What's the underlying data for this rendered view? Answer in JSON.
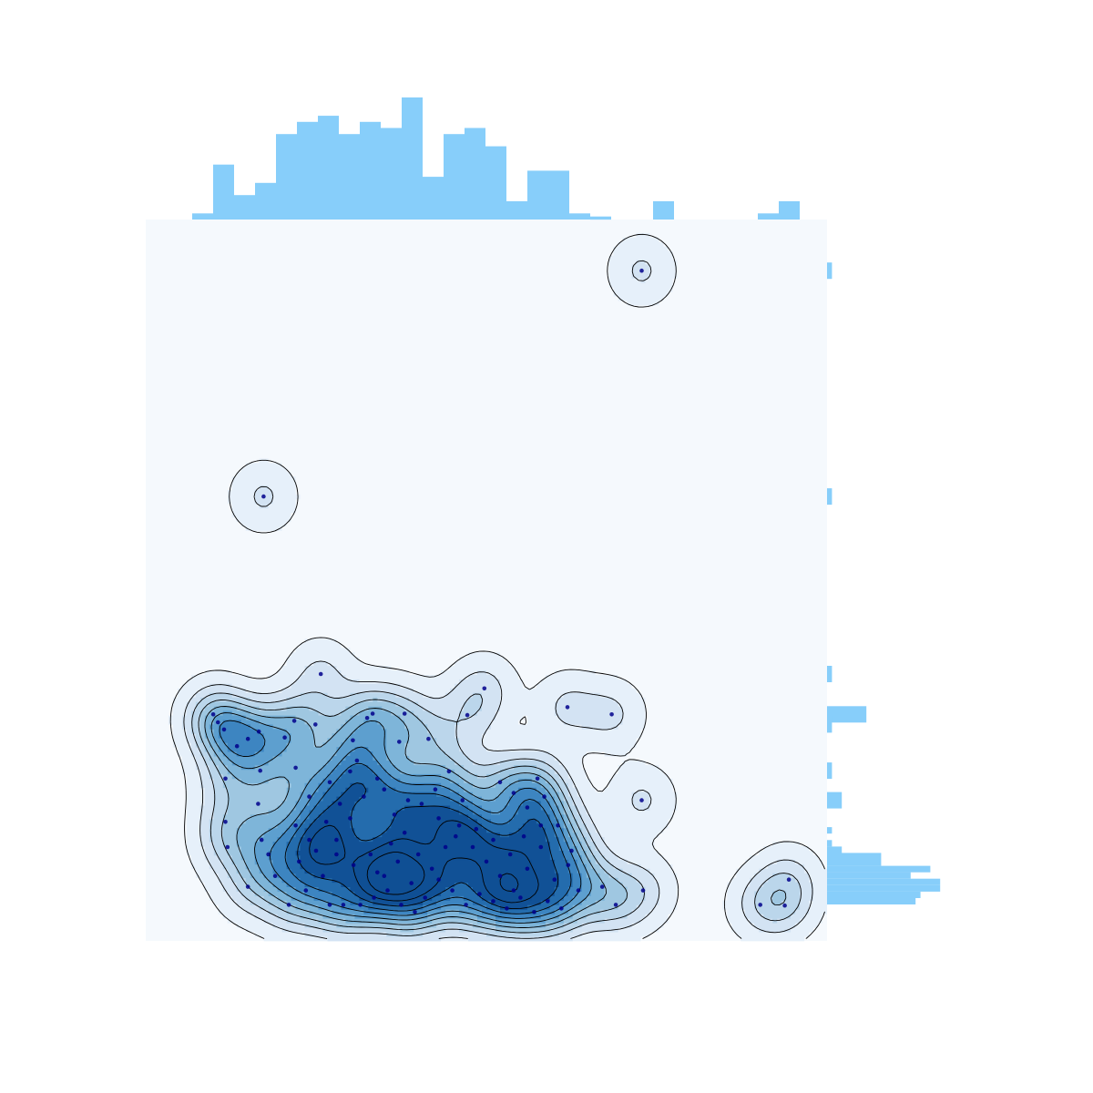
{
  "chart_data": {
    "type": "scatter",
    "title": "",
    "xlabel": "",
    "ylabel": "",
    "xlim": [
      0,
      100
    ],
    "ylim": [
      0,
      100
    ],
    "grid": false,
    "legend": "none",
    "colors": {
      "background": "#f5f9fd",
      "histogram": "#87cefa",
      "points": "#00008b",
      "contour_line": "#000000",
      "density_levels": [
        "#e4eef9",
        "#d0e1f2",
        "#b8d4ea",
        "#9cc5e0",
        "#7ab3d8",
        "#5a9ccd",
        "#3a82bf",
        "#2169ab",
        "#0f4f94"
      ]
    },
    "points": [
      [
        72.8,
        92.9
      ],
      [
        17.3,
        61.6
      ],
      [
        9.9,
        31.4
      ],
      [
        10.6,
        30.3
      ],
      [
        16.8,
        23.6
      ],
      [
        25.7,
        37.0
      ],
      [
        24.9,
        30.0
      ],
      [
        21.8,
        30.5
      ],
      [
        33.3,
        31.5
      ],
      [
        38.0,
        31.5
      ],
      [
        47.2,
        31.3
      ],
      [
        61.9,
        32.4
      ],
      [
        68.4,
        31.4
      ],
      [
        72.8,
        19.5
      ],
      [
        31.0,
        25.0
      ],
      [
        27.0,
        22.0
      ],
      [
        24.0,
        20.0
      ],
      [
        22.0,
        16.0
      ],
      [
        25.0,
        12.5
      ],
      [
        28.0,
        14.0
      ],
      [
        30.0,
        17.0
      ],
      [
        32.0,
        20.0
      ],
      [
        35.0,
        21.0
      ],
      [
        36.5,
        17.5
      ],
      [
        38.0,
        15.0
      ],
      [
        40.0,
        12.0
      ],
      [
        42.0,
        10.0
      ],
      [
        44.0,
        13.0
      ],
      [
        46.0,
        16.0
      ],
      [
        48.0,
        13.0
      ],
      [
        50.0,
        11.0
      ],
      [
        52.0,
        9.0
      ],
      [
        54.0,
        7.0
      ],
      [
        56.0,
        10.0
      ],
      [
        58.0,
        13.0
      ],
      [
        60.0,
        8.5
      ],
      [
        62.0,
        10.5
      ],
      [
        63.5,
        7.0
      ],
      [
        33.0,
        12.0
      ],
      [
        35.0,
        9.0
      ],
      [
        37.0,
        11.0
      ],
      [
        39.0,
        8.0
      ],
      [
        41.0,
        6.0
      ],
      [
        43.0,
        8.5
      ],
      [
        45.0,
        7.0
      ],
      [
        47.0,
        5.0
      ],
      [
        49.0,
        6.5
      ],
      [
        51.0,
        5.5
      ],
      [
        53.0,
        4.5
      ],
      [
        55.0,
        6.0
      ],
      [
        57.0,
        4.0
      ],
      [
        59.0,
        5.5
      ],
      [
        61.0,
        4.5
      ],
      [
        58.0,
        16.0
      ],
      [
        56.0,
        18.5
      ],
      [
        54.0,
        20.5
      ],
      [
        52.0,
        22.0
      ],
      [
        40.5,
        19.0
      ],
      [
        42.5,
        21.0
      ],
      [
        44.5,
        23.5
      ],
      [
        46.5,
        19.5
      ],
      [
        48.5,
        15.5
      ],
      [
        34.0,
        22.5
      ],
      [
        30.0,
        23.5
      ],
      [
        28.5,
        19.0
      ],
      [
        26.5,
        16.5
      ],
      [
        24.0,
        14.0
      ],
      [
        22.5,
        11.0
      ],
      [
        11.7,
        16.5
      ],
      [
        11.7,
        22.5
      ],
      [
        15.0,
        28.0
      ],
      [
        17.0,
        14.0
      ],
      [
        19.0,
        9.0
      ],
      [
        21.0,
        5.0
      ],
      [
        15.0,
        7.5
      ],
      [
        12.0,
        13.0
      ],
      [
        16.5,
        19.0
      ],
      [
        35.5,
        7.0
      ],
      [
        37.5,
        5.0
      ],
      [
        39.5,
        4.0
      ],
      [
        27.0,
        5.0
      ],
      [
        29.0,
        5.0
      ],
      [
        31.5,
        5.0
      ],
      [
        33.5,
        6.0
      ],
      [
        62.5,
        12.5
      ],
      [
        67.0,
        7.5
      ],
      [
        69.0,
        5.0
      ],
      [
        73.0,
        7.0
      ],
      [
        58.5,
        20.0
      ],
      [
        22.0,
        24.0
      ],
      [
        34.0,
        9.5
      ],
      [
        36.0,
        13.5
      ],
      [
        38.5,
        19.5
      ],
      [
        28.0,
        12.0
      ],
      [
        30.5,
        10.5
      ],
      [
        43.0,
        17.0
      ],
      [
        45.5,
        14.5
      ],
      [
        51.0,
        14.0
      ],
      [
        53.5,
        12.0
      ],
      [
        55.5,
        14.5
      ],
      [
        60.5,
        16.0
      ],
      [
        57.5,
        22.5
      ],
      [
        26.0,
        9.0
      ],
      [
        23.5,
        7.0
      ],
      [
        18.0,
        12.0
      ],
      [
        90.2,
        5.0
      ],
      [
        94.4,
        8.5
      ],
      [
        93.8,
        4.9
      ],
      [
        20.4,
        28.2
      ],
      [
        37.2,
        27.6
      ],
      [
        30.4,
        27.8
      ],
      [
        32.5,
        30.9
      ],
      [
        16.6,
        29.0
      ],
      [
        11.5,
        29.3
      ],
      [
        13.4,
        27.0
      ],
      [
        41.5,
        28.0
      ],
      [
        49.7,
        35.0
      ]
    ],
    "hist_x": [
      1,
      9,
      4,
      6,
      14,
      16,
      17,
      14,
      16,
      15,
      20,
      7,
      14,
      15,
      12,
      3,
      8,
      8,
      1,
      0.5,
      0,
      0,
      3,
      0,
      0,
      0,
      0,
      1,
      3
    ],
    "hist_y": [
      18,
      19,
      23,
      23,
      17,
      21,
      11,
      11,
      3,
      1,
      0,
      1,
      0,
      0,
      0,
      0,
      0,
      0,
      0,
      0,
      0,
      0,
      0,
      0,
      0,
      0,
      0,
      0,
      0,
      0,
      0,
      0,
      0,
      0,
      0,
      0,
      0,
      0,
      0,
      0,
      0,
      0,
      0,
      0,
      0,
      0,
      0,
      0,
      0,
      0,
      0,
      0,
      0,
      0,
      0,
      0,
      0,
      0,
      0,
      0,
      0,
      0,
      0,
      0,
      0,
      0,
      0,
      0,
      0,
      0,
      0,
      0,
      0,
      0,
      0,
      0,
      0,
      0,
      0,
      0,
      0,
      0,
      0,
      0,
      0,
      0,
      0,
      0,
      0,
      0,
      0,
      0,
      0,
      0,
      0,
      0,
      0,
      0,
      0,
      0,
      0,
      0,
      0,
      0,
      0,
      0,
      0,
      0,
      0,
      0,
      0,
      0
    ]
  }
}
